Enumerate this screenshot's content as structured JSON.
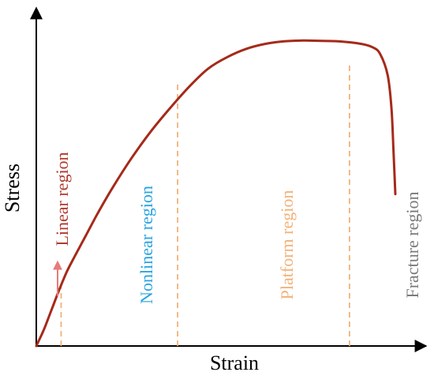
{
  "chart_data": {
    "type": "line",
    "title": "",
    "xlabel": "Strain",
    "ylabel": "Stress",
    "xlim": [
      0,
      100
    ],
    "ylim": [
      0,
      100
    ],
    "grid": false,
    "series": [
      {
        "color": "#a52a1a",
        "x": [
          0,
          2,
          4,
          6,
          8,
          10,
          13,
          16,
          20,
          25,
          30,
          35,
          40,
          45,
          50,
          55,
          60,
          65,
          70,
          75,
          80,
          85,
          88,
          90,
          92,
          93,
          93.5,
          94
        ],
        "y": [
          0,
          5,
          11,
          17,
          22.5,
          27,
          33.5,
          40,
          48,
          57,
          65,
          72,
          78.5,
          84,
          87.5,
          90,
          91.5,
          92.3,
          92.5,
          92.4,
          92.2,
          91.5,
          90.5,
          88.5,
          82,
          72,
          60,
          46
        ]
      }
    ],
    "boundaries": [
      {
        "x": 6.5,
        "y_top": 18
      },
      {
        "x": 37,
        "y_top": 80
      },
      {
        "x": 82,
        "y_top": 85
      }
    ],
    "regions": [
      {
        "label": "Linear region",
        "color": "#b03a2e"
      },
      {
        "label": "Nonlinear region",
        "color": "#29a3e0"
      },
      {
        "label": "Platform region",
        "color": "#f2b27a"
      },
      {
        "label": "Fracture region",
        "color": "#7a7a7a"
      }
    ],
    "colors": {
      "axis": "#000000",
      "boundary": "#f0b27a",
      "arrow": "#e87a7a"
    }
  }
}
